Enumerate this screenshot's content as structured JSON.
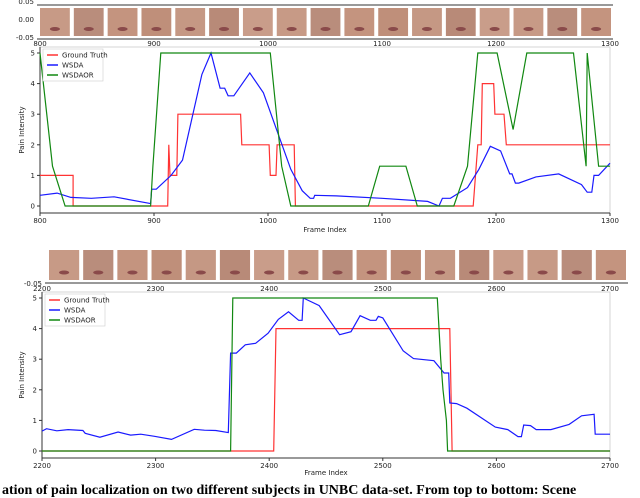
{
  "caption": "ation of pain localization on two different subjects in UNBC data-set. From top to bottom: Scene",
  "colors": {
    "Ground Truth": "#ff3333",
    "WSDA": "#1a1aff",
    "WSDAOR": "#118811"
  },
  "chart_data": [
    {
      "type": "line",
      "face_strip": {
        "y_ticks": [
          "0.05",
          "0.00",
          "-0.05"
        ],
        "x_ticks": [
          "800",
          "900",
          "1000",
          "1100",
          "1200",
          "1300"
        ],
        "frames": 17
      },
      "xlabel": "Frame Index",
      "ylabel": "Pain Intensity",
      "xlim": [
        800,
        1300
      ],
      "ylim": [
        -0.25,
        5.1
      ],
      "x_ticks": [
        800,
        900,
        1000,
        1100,
        1200,
        1300
      ],
      "y_ticks": [
        0,
        1,
        2,
        3,
        4,
        5
      ],
      "legend": "top-left",
      "grid": false,
      "series": [
        {
          "name": "Ground Truth",
          "points": [
            [
              800,
              1
            ],
            [
              829,
              1
            ],
            [
              829,
              0
            ],
            [
              912,
              0
            ],
            [
              913,
              2
            ],
            [
              914,
              1
            ],
            [
              920,
              1
            ],
            [
              921,
              3
            ],
            [
              976,
              3
            ],
            [
              977,
              2
            ],
            [
              1001,
              2
            ],
            [
              1002,
              1
            ],
            [
              1007,
              1
            ],
            [
              1008,
              2
            ],
            [
              1023,
              2
            ],
            [
              1024,
              0
            ],
            [
              1180,
              0
            ],
            [
              1182,
              1
            ],
            [
              1184,
              2
            ],
            [
              1187,
              2
            ],
            [
              1188,
              4
            ],
            [
              1198,
              4
            ],
            [
              1199,
              3
            ],
            [
              1207,
              3
            ],
            [
              1209,
              2
            ],
            [
              1300,
              2
            ]
          ]
        },
        {
          "name": "WSDA",
          "points": [
            [
              800,
              0.35
            ],
            [
              815,
              0.42
            ],
            [
              827,
              0.28
            ],
            [
              845,
              0.25
            ],
            [
              865,
              0.3
            ],
            [
              897,
              0.08
            ],
            [
              898,
              0.55
            ],
            [
              902,
              0.55
            ],
            [
              915,
              1
            ],
            [
              925,
              1.5
            ],
            [
              942,
              4.3
            ],
            [
              950,
              5
            ],
            [
              958,
              3.85
            ],
            [
              962,
              3.85
            ],
            [
              965,
              3.6
            ],
            [
              970,
              3.6
            ],
            [
              984,
              4.35
            ],
            [
              996,
              3.7
            ],
            [
              1020,
              1.2
            ],
            [
              1030,
              0.5
            ],
            [
              1037,
              0.25
            ],
            [
              1040,
              0.25
            ],
            [
              1041,
              0.35
            ],
            [
              1060,
              0.33
            ],
            [
              1100,
              0.25
            ],
            [
              1140,
              0.15
            ],
            [
              1150,
              0
            ],
            [
              1153,
              0.25
            ],
            [
              1160,
              0.25
            ],
            [
              1175,
              0.6
            ],
            [
              1185,
              1.2
            ],
            [
              1195,
              1.95
            ],
            [
              1204,
              1.8
            ],
            [
              1212,
              1.05
            ],
            [
              1214,
              1.05
            ],
            [
              1217,
              0.75
            ],
            [
              1220,
              0.75
            ],
            [
              1235,
              0.95
            ],
            [
              1255,
              1.05
            ],
            [
              1275,
              0.7
            ],
            [
              1280,
              0.45
            ],
            [
              1284,
              0.45
            ],
            [
              1286,
              1
            ],
            [
              1290,
              1
            ],
            [
              1300,
              1.4
            ]
          ]
        },
        {
          "name": "WSDAOR",
          "points": [
            [
              800,
              5
            ],
            [
              811,
              1.3
            ],
            [
              822,
              0
            ],
            [
              897,
              0
            ],
            [
              899,
              1.3
            ],
            [
              906,
              5
            ],
            [
              1002,
              5
            ],
            [
              1012,
              1.3
            ],
            [
              1020,
              0
            ],
            [
              1088,
              0
            ],
            [
              1098,
              1.3
            ],
            [
              1121,
              1.3
            ],
            [
              1131,
              0
            ],
            [
              1163,
              0
            ],
            [
              1175,
              1.3
            ],
            [
              1184,
              5
            ],
            [
              1201,
              5
            ],
            [
              1215,
              2.5
            ],
            [
              1227,
              5
            ],
            [
              1268,
              5
            ],
            [
              1279,
              1.3
            ],
            [
              1280,
              5
            ],
            [
              1290,
              1.3
            ],
            [
              1300,
              1.3
            ]
          ]
        }
      ]
    },
    {
      "type": "line",
      "face_strip": {
        "y_ticks": [
          "-0.05"
        ],
        "x_ticks": [
          "2200",
          "2300",
          "2400",
          "2500",
          "2600",
          "2700"
        ],
        "frames": 17
      },
      "xlabel": "Frame Index",
      "ylabel": "Pain Intensity",
      "xlim": [
        2200,
        2700
      ],
      "ylim": [
        -0.25,
        5.1
      ],
      "x_ticks": [
        2200,
        2300,
        2400,
        2500,
        2600,
        2700
      ],
      "y_ticks": [
        0,
        1,
        2,
        3,
        4,
        5
      ],
      "legend": "top-left",
      "grid": false,
      "series": [
        {
          "name": "Ground Truth",
          "points": [
            [
              2200,
              0
            ],
            [
              2404,
              0
            ],
            [
              2406,
              4
            ],
            [
              2559,
              4
            ],
            [
              2561,
              0
            ],
            [
              2700,
              0
            ]
          ]
        },
        {
          "name": "WSDA",
          "points": [
            [
              2200,
              0.65
            ],
            [
              2204,
              0.73
            ],
            [
              2213,
              0.66
            ],
            [
              2223,
              0.7
            ],
            [
              2236,
              0.67
            ],
            [
              2238,
              0.58
            ],
            [
              2251,
              0.45
            ],
            [
              2267,
              0.62
            ],
            [
              2278,
              0.52
            ],
            [
              2287,
              0.55
            ],
            [
              2299,
              0.48
            ],
            [
              2314,
              0.38
            ],
            [
              2334,
              0.71
            ],
            [
              2343,
              0.68
            ],
            [
              2353,
              0.67
            ],
            [
              2364,
              0.6
            ],
            [
              2366,
              3.2
            ],
            [
              2371,
              3.2
            ],
            [
              2379,
              3.47
            ],
            [
              2388,
              3.52
            ],
            [
              2399,
              3.85
            ],
            [
              2408,
              4.3
            ],
            [
              2417,
              4.55
            ],
            [
              2426,
              4.27
            ],
            [
              2429,
              4.27
            ],
            [
              2430,
              5
            ],
            [
              2444,
              4.75
            ],
            [
              2462,
              3.8
            ],
            [
              2472,
              3.9
            ],
            [
              2480,
              4.42
            ],
            [
              2489,
              4.27
            ],
            [
              2494,
              4.27
            ],
            [
              2496,
              4.4
            ],
            [
              2500,
              4.35
            ],
            [
              2518,
              3.27
            ],
            [
              2527,
              3.02
            ],
            [
              2545,
              2.95
            ],
            [
              2554,
              2.55
            ],
            [
              2558,
              2.55
            ],
            [
              2559,
              1.57
            ],
            [
              2565,
              1.55
            ],
            [
              2574,
              1.4
            ],
            [
              2599,
              0.78
            ],
            [
              2610,
              0.7
            ],
            [
              2619,
              0.47
            ],
            [
              2622,
              0.47
            ],
            [
              2624,
              0.85
            ],
            [
              2630,
              0.83
            ],
            [
              2635,
              0.7
            ],
            [
              2648,
              0.7
            ],
            [
              2664,
              0.87
            ],
            [
              2675,
              1.15
            ],
            [
              2686,
              1.2
            ],
            [
              2687,
              0.55
            ],
            [
              2700,
              0.55
            ]
          ]
        },
        {
          "name": "WSDAOR",
          "points": [
            [
              2200,
              0
            ],
            [
              2366,
              0
            ],
            [
              2368,
              5
            ],
            [
              2548,
              5
            ],
            [
              2551,
              3
            ],
            [
              2553,
              2
            ],
            [
              2556,
              1
            ],
            [
              2557,
              0
            ],
            [
              2700,
              0
            ]
          ]
        }
      ]
    }
  ]
}
